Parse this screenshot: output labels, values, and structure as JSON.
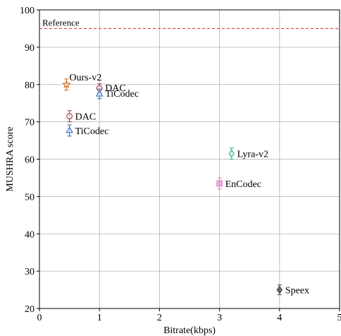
{
  "chart_data": {
    "type": "scatter",
    "title": "",
    "xlabel": "Bitrate(kbps)",
    "ylabel": "MUSHRA score",
    "xlim": [
      0,
      5
    ],
    "ylim": [
      20,
      100
    ],
    "xticks": [
      "0",
      "1",
      "2",
      "3",
      "4",
      "5"
    ],
    "yticks": [
      "20",
      "30",
      "40",
      "50",
      "60",
      "70",
      "80",
      "90",
      "100"
    ],
    "grid": true,
    "reference": {
      "label": "Reference",
      "y": 95,
      "color": "#e8413b",
      "style": "dashed"
    },
    "points": [
      {
        "label": "Ours-v2",
        "x": 0.45,
        "y": 80.0,
        "err": 1.5,
        "marker": "star",
        "color": "#d9772f"
      },
      {
        "label": "DAC",
        "x": 1.0,
        "y": 79.0,
        "err": 1.2,
        "marker": "circle",
        "color": "#b04a57"
      },
      {
        "label": "TiCodec",
        "x": 1.0,
        "y": 77.5,
        "err": 1.3,
        "marker": "triangle",
        "color": "#3d7cc9"
      },
      {
        "label": "DAC",
        "x": 0.5,
        "y": 71.5,
        "err": 1.5,
        "marker": "circle",
        "color": "#b04a57"
      },
      {
        "label": "TiCodec",
        "x": 0.5,
        "y": 67.7,
        "err": 1.5,
        "marker": "triangle",
        "color": "#3d7cc9"
      },
      {
        "label": "Lyra-v2",
        "x": 3.2,
        "y": 61.5,
        "err": 1.5,
        "marker": "diamond",
        "color": "#3cbf8f"
      },
      {
        "label": "EnCodec",
        "x": 3.0,
        "y": 53.5,
        "err": 1.5,
        "marker": "square",
        "color": "#e58fc9"
      },
      {
        "label": "Speex",
        "x": 4.0,
        "y": 25.0,
        "err": 1.3,
        "marker": "diamond",
        "color": "#555555"
      }
    ]
  }
}
